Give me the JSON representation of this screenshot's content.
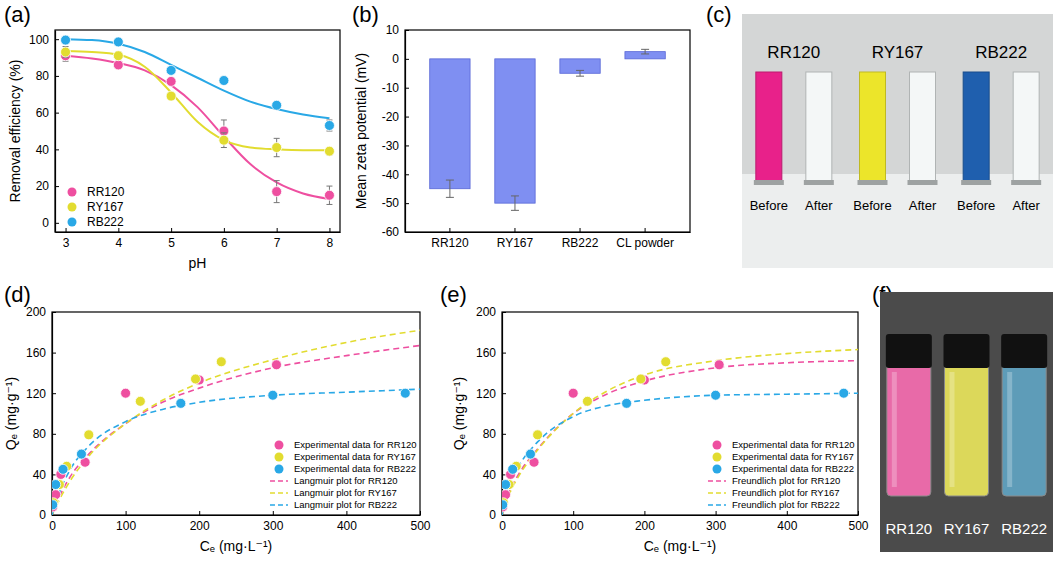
{
  "chart_data": [
    {
      "type": "scatter",
      "panel": "(a)",
      "x_label": "pH",
      "y_label": "Removal efficiency (%)",
      "x": [
        3,
        4,
        5,
        6,
        7,
        8
      ],
      "xlim": [
        2.8,
        8.2
      ],
      "xticks": [
        3,
        4,
        5,
        6,
        7,
        8
      ],
      "ylim": [
        -5,
        105
      ],
      "yticks": [
        0,
        20,
        40,
        60,
        80,
        100
      ],
      "legend": "lower left",
      "series": [
        {
          "name": "RR120",
          "color": "#ee4fa0",
          "marker": "circle",
          "values": [
            91,
            86,
            77,
            50,
            17,
            15
          ],
          "errors": [
            3,
            2,
            2,
            6,
            6,
            5
          ],
          "fit": {
            "x": [
              3,
              3.5,
              4,
              4.5,
              5,
              5.5,
              6,
              6.5,
              7,
              7.5,
              8
            ],
            "values": [
              91,
              89.5,
              87,
              83,
              75,
              63,
              47,
              32,
              22,
              16,
              13
            ]
          }
        },
        {
          "name": "RY167",
          "color": "#e2dc30",
          "marker": "circle",
          "values": [
            93,
            91,
            69,
            45,
            41,
            39
          ],
          "errors": [
            3,
            2,
            1,
            4,
            5,
            2
          ],
          "fit": {
            "x": [
              3,
              3.5,
              4,
              4.5,
              5,
              5.5,
              6,
              6.5,
              7,
              7.5,
              8
            ],
            "values": [
              93.5,
              93,
              91.5,
              85,
              71,
              55,
              45,
              41,
              40,
              39.5,
              39.5
            ]
          }
        },
        {
          "name": "RB222",
          "color": "#29a8e6",
          "marker": "circle",
          "values": [
            99.5,
            98.5,
            83,
            77.5,
            64,
            53
          ],
          "errors": [
            1,
            1,
            1,
            2,
            2,
            3
          ],
          "fit": {
            "x": [
              3,
              3.5,
              4,
              4.5,
              5,
              5.5,
              6,
              6.5,
              7,
              7.5,
              8
            ],
            "values": [
              100,
              99.5,
              97.5,
              93,
              86,
              79,
              72,
              66,
              62,
              59,
              57
            ]
          }
        }
      ]
    },
    {
      "type": "bar",
      "panel": "(b)",
      "y_label": "Mean zeta potential (mV)",
      "categories": [
        "RR120",
        "RY167",
        "RB222",
        "CL powder"
      ],
      "values": [
        -45,
        -50,
        -5,
        2.5
      ],
      "errors": [
        3,
        2.5,
        1,
        0.8
      ],
      "color": "#7f8ff2",
      "ylim": [
        -60,
        10
      ],
      "yticks": [
        -60,
        -50,
        -40,
        -30,
        -20,
        -10,
        0,
        10
      ]
    },
    {
      "type": "scatter",
      "panel": "(d)",
      "x_label": "Cₑ (mg·L⁻¹)",
      "y_label": "Qₑ (mg·g⁻¹)",
      "xlim": [
        0,
        500
      ],
      "xticks": [
        0,
        100,
        200,
        300,
        400,
        500
      ],
      "ylim": [
        0,
        200
      ],
      "yticks": [
        0,
        40,
        80,
        120,
        160,
        200
      ],
      "legend": "lower right",
      "series": [
        {
          "name": "Experimental data for RR120",
          "color": "#ee4fa0",
          "marker": "circle",
          "x": [
            1,
            5,
            12,
            45,
            100,
            200,
            305
          ],
          "values": [
            8,
            20,
            40,
            52,
            120,
            133,
            148
          ]
        },
        {
          "name": "Experimental data for RY167",
          "color": "#e2dc30",
          "marker": "circle",
          "x": [
            2,
            10,
            20,
            50,
            120,
            195,
            230
          ],
          "values": [
            12,
            30,
            48,
            79,
            112,
            134,
            151
          ]
        },
        {
          "name": "Experimental data for RB222",
          "color": "#29a8e6",
          "marker": "circle",
          "x": [
            1,
            5,
            15,
            40,
            175,
            300,
            480
          ],
          "values": [
            10,
            30,
            45,
            60,
            110,
            118,
            120
          ]
        },
        {
          "name": "Langmuir plot for RR120",
          "color": "#ee4fa0",
          "type": "line",
          "line_style": "dashed",
          "x": [
            0,
            10,
            25,
            50,
            100,
            150,
            200,
            300,
            400,
            500
          ],
          "values": [
            0,
            18,
            38,
            60,
            90,
            111,
            125,
            145,
            157,
            167
          ]
        },
        {
          "name": "Langmuir plot for RY167",
          "color": "#e2dc30",
          "type": "line",
          "line_style": "dashed",
          "x": [
            0,
            10,
            25,
            50,
            100,
            150,
            200,
            300,
            400,
            500
          ],
          "values": [
            0,
            15,
            34,
            58,
            90,
            113,
            130,
            153,
            170,
            182
          ]
        },
        {
          "name": "Langmuir plot for RB222",
          "color": "#29a8e6",
          "type": "line",
          "line_style": "dashed",
          "x": [
            0,
            10,
            25,
            50,
            100,
            150,
            200,
            300,
            400,
            500
          ],
          "values": [
            0,
            22,
            45,
            68,
            92,
            104,
            111,
            118,
            121,
            124
          ]
        }
      ]
    },
    {
      "type": "scatter",
      "panel": "(e)",
      "x_label": "Cₑ (mg·L⁻¹)",
      "y_label": "Qₑ (mg·g⁻¹)",
      "xlim": [
        0,
        500
      ],
      "xticks": [
        0,
        100,
        200,
        300,
        400,
        500
      ],
      "ylim": [
        0,
        200
      ],
      "yticks": [
        0,
        40,
        80,
        120,
        160,
        200
      ],
      "legend": "lower right",
      "series": [
        {
          "name": "Experimental data for RR120",
          "color": "#ee4fa0",
          "marker": "circle",
          "x": [
            1,
            5,
            12,
            45,
            100,
            200,
            305
          ],
          "values": [
            8,
            20,
            40,
            52,
            120,
            133,
            148
          ]
        },
        {
          "name": "Experimental data for RY167",
          "color": "#e2dc30",
          "marker": "circle",
          "x": [
            2,
            10,
            20,
            50,
            120,
            195,
            230
          ],
          "values": [
            12,
            30,
            48,
            79,
            112,
            134,
            151
          ]
        },
        {
          "name": "Experimental data for RB222",
          "color": "#29a8e6",
          "marker": "circle",
          "x": [
            1,
            5,
            15,
            40,
            175,
            300,
            480
          ],
          "values": [
            10,
            30,
            45,
            60,
            110,
            118,
            120
          ]
        },
        {
          "name": "Freundlich plot for RR120",
          "color": "#ee4fa0",
          "type": "line",
          "line_style": "dashed",
          "x": [
            0,
            10,
            25,
            50,
            100,
            150,
            200,
            300,
            400,
            500
          ],
          "values": [
            0,
            22,
            42,
            65,
            100,
            120,
            132,
            145,
            150,
            152
          ]
        },
        {
          "name": "Freundlich plot for RY167",
          "color": "#e2dc30",
          "type": "line",
          "line_style": "dashed",
          "x": [
            0,
            10,
            25,
            50,
            100,
            150,
            200,
            300,
            400,
            500
          ],
          "values": [
            0,
            20,
            40,
            64,
            100,
            123,
            138,
            152,
            159,
            163
          ]
        },
        {
          "name": "Freundlich plot for RB222",
          "color": "#29a8e6",
          "type": "line",
          "line_style": "dashed",
          "x": [
            0,
            10,
            25,
            50,
            100,
            150,
            200,
            300,
            400,
            500
          ],
          "values": [
            0,
            30,
            50,
            72,
            97,
            108,
            113,
            118,
            119,
            120
          ]
        }
      ]
    }
  ],
  "photos": [
    {
      "panel": "(c)",
      "items": [
        {
          "label": "RR120",
          "color": "#e8218a",
          "captions": [
            "Before",
            "After"
          ]
        },
        {
          "label": "RY167",
          "color": "#ece52a",
          "captions": [
            "Before",
            "After"
          ]
        },
        {
          "label": "RB222",
          "color": "#1f5fae",
          "captions": [
            "Before",
            "After"
          ]
        }
      ]
    },
    {
      "panel": "(f)",
      "items": [
        {
          "label": "RR120",
          "color": "#e86aa8"
        },
        {
          "label": "RY167",
          "color": "#dcd85a"
        },
        {
          "label": "RB222",
          "color": "#5e9cb8"
        }
      ]
    }
  ]
}
